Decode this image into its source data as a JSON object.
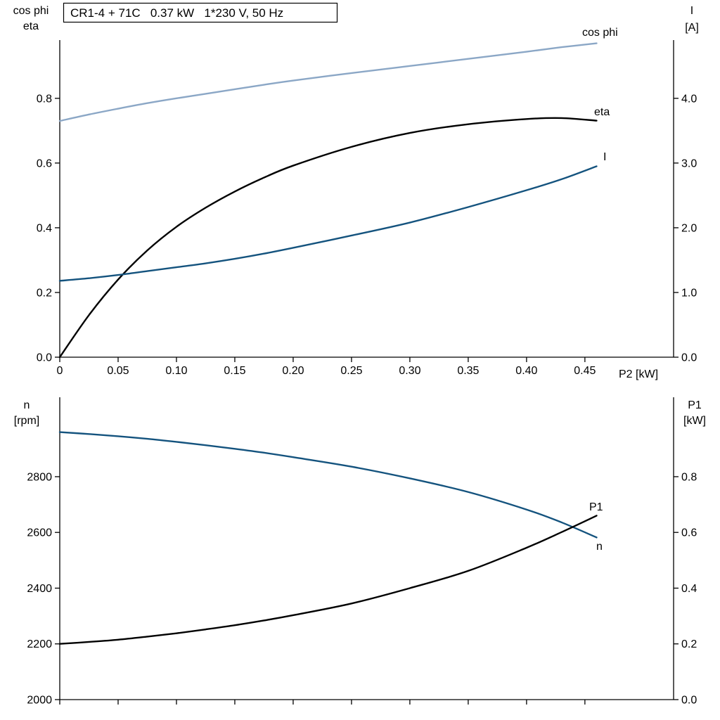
{
  "page": {
    "background": "#ffffff"
  },
  "colors": {
    "curve_light_blue": "#8BA7C6",
    "curve_dark_blue": "#14537E",
    "curve_black": "#000000",
    "axis": "#000000"
  },
  "chart_data": [
    {
      "type": "line",
      "title": "CR1-4 + 71C   0.37 kW   1*230 V, 50 Hz",
      "legend_position": "curve-end-labels",
      "grid": false,
      "x_axis": {
        "label": "P2 [kW]",
        "min": 0,
        "max": 0.526,
        "ticks": [
          0,
          0.05,
          0.1,
          0.15,
          0.2,
          0.25,
          0.3,
          0.35,
          0.4,
          0.45
        ],
        "tick_labels": [
          "0",
          "0.05",
          "0.10",
          "0.15",
          "0.20",
          "0.25",
          "0.30",
          "0.35",
          "0.40",
          "0.45"
        ]
      },
      "y_left": {
        "label_lines": [
          "cos phi",
          "eta"
        ],
        "min": 0,
        "max": 0.98,
        "ticks": [
          0,
          0.2,
          0.4,
          0.6,
          0.8
        ],
        "tick_labels": [
          "0.0",
          "0.2",
          "0.4",
          "0.6",
          "0.8"
        ]
      },
      "y_right": {
        "label_lines": [
          "I",
          "[A]"
        ],
        "min": 0,
        "max": 4.9,
        "ticks": [
          0,
          1,
          2,
          3,
          4
        ],
        "tick_labels": [
          "0.0",
          "1.0",
          "2.0",
          "3.0",
          "4.0"
        ]
      },
      "series": [
        {
          "name": "cos phi",
          "axis": "left",
          "color": "#8BA7C6",
          "x": [
            0,
            0.025,
            0.05,
            0.075,
            0.1,
            0.125,
            0.15,
            0.175,
            0.2,
            0.25,
            0.3,
            0.35,
            0.4,
            0.43,
            0.46
          ],
          "y": [
            0.73,
            0.75,
            0.768,
            0.785,
            0.8,
            0.814,
            0.828,
            0.842,
            0.855,
            0.878,
            0.9,
            0.922,
            0.944,
            0.958,
            0.97
          ]
        },
        {
          "name": "eta",
          "axis": "left",
          "color": "#000000",
          "x": [
            0,
            0.025,
            0.05,
            0.075,
            0.1,
            0.125,
            0.15,
            0.175,
            0.2,
            0.25,
            0.3,
            0.35,
            0.4,
            0.43,
            0.46
          ],
          "y": [
            0,
            0.13,
            0.24,
            0.33,
            0.403,
            0.462,
            0.512,
            0.555,
            0.592,
            0.65,
            0.693,
            0.72,
            0.736,
            0.739,
            0.731
          ]
        },
        {
          "name": "I",
          "axis": "right",
          "color": "#14537E",
          "x": [
            0,
            0.025,
            0.05,
            0.075,
            0.1,
            0.125,
            0.15,
            0.175,
            0.2,
            0.25,
            0.3,
            0.35,
            0.4,
            0.43,
            0.46
          ],
          "y": [
            1.18,
            1.22,
            1.27,
            1.33,
            1.39,
            1.45,
            1.52,
            1.6,
            1.69,
            1.88,
            2.08,
            2.32,
            2.58,
            2.75,
            2.95
          ]
        }
      ]
    },
    {
      "type": "line",
      "title": "",
      "legend_position": "curve-end-labels",
      "grid": false,
      "x_axis": {
        "label": "",
        "min": 0,
        "max": 0.526,
        "ticks": [
          0,
          0.05,
          0.1,
          0.15,
          0.2,
          0.25,
          0.3,
          0.35,
          0.4,
          0.45
        ],
        "tick_labels": []
      },
      "y_left": {
        "label_lines": [
          "n",
          "[rpm]"
        ],
        "min": 2000,
        "max": 3085,
        "ticks": [
          2000,
          2200,
          2400,
          2600,
          2800
        ],
        "tick_labels": [
          "2000",
          "2200",
          "2400",
          "2600",
          "2800"
        ]
      },
      "y_right": {
        "label_lines": [
          "P1",
          "[kW]"
        ],
        "min": 0,
        "max": 1.085,
        "ticks": [
          0,
          0.2,
          0.4,
          0.6,
          0.8
        ],
        "tick_labels": [
          "0.0",
          "0.2",
          "0.4",
          "0.6",
          "0.8"
        ]
      },
      "series": [
        {
          "name": "n",
          "axis": "left",
          "color": "#14537E",
          "x": [
            0,
            0.025,
            0.05,
            0.075,
            0.1,
            0.125,
            0.15,
            0.175,
            0.2,
            0.25,
            0.3,
            0.35,
            0.4,
            0.43,
            0.46
          ],
          "y": [
            2960,
            2953,
            2945,
            2936,
            2925,
            2913,
            2900,
            2886,
            2870,
            2836,
            2794,
            2745,
            2682,
            2636,
            2582
          ]
        },
        {
          "name": "P1",
          "axis": "right",
          "color": "#000000",
          "x": [
            0,
            0.025,
            0.05,
            0.075,
            0.1,
            0.125,
            0.15,
            0.175,
            0.2,
            0.25,
            0.3,
            0.35,
            0.4,
            0.43,
            0.46
          ],
          "y": [
            0.2,
            0.207,
            0.215,
            0.226,
            0.238,
            0.252,
            0.267,
            0.284,
            0.303,
            0.345,
            0.4,
            0.462,
            0.545,
            0.601,
            0.66
          ]
        }
      ]
    }
  ]
}
